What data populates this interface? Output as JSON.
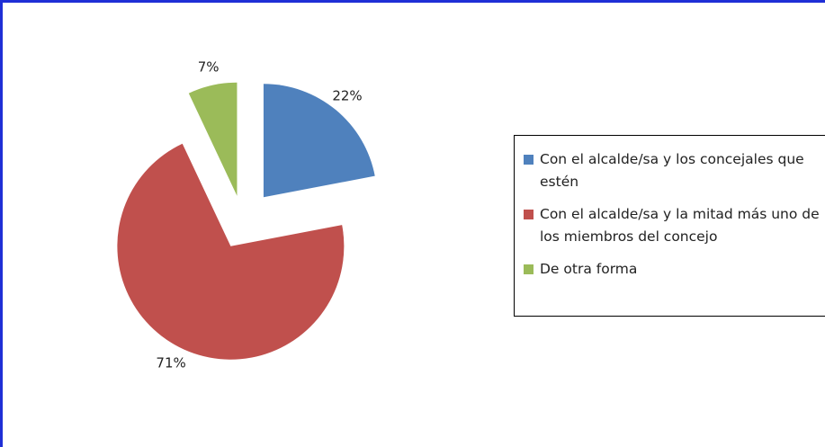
{
  "chart_data": {
    "type": "pie",
    "categories": [
      "Con el alcalde/sa y los concejales que estén",
      "Con el alcalde/sa y la mitad más uno de los miembros del concejo",
      "De otra forma"
    ],
    "values": [
      22,
      71,
      7
    ],
    "value_labels": [
      "22%",
      "71%",
      "7%"
    ],
    "colors": [
      "#4f81bd",
      "#c0504d",
      "#9bbb59"
    ],
    "legend": "right"
  }
}
